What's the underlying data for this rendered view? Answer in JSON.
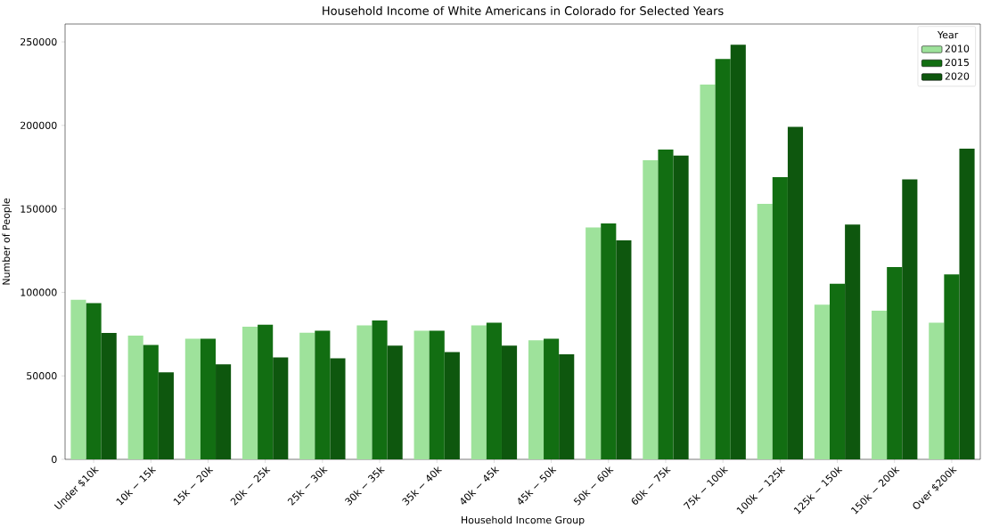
{
  "chart_data": {
    "type": "bar",
    "title": "Household Income of White Americans in Colorado for Selected Years",
    "xlabel": "Household Income Group",
    "ylabel": "Number of People",
    "legend_title": "Year",
    "legend": "top right",
    "categories": [
      "Under $10k",
      "10k − 15k",
      "15k − 20k",
      "20k − 25k",
      "25k − 30k",
      "30k − 35k",
      "35k − 40k",
      "40k − 45k",
      "45k − 50k",
      "50k − 60k",
      "60k − 75k",
      "75k − 100k",
      "100k − 125k",
      "125k − 150k",
      "150k − 200k",
      "Over $200k"
    ],
    "series": [
      {
        "name": "2010",
        "color": "#9ee29b",
        "values": [
          95600,
          74100,
          72200,
          79400,
          75900,
          80200,
          77000,
          80200,
          71300,
          138900,
          179100,
          224500,
          153000,
          92600,
          89000,
          81800
        ]
      },
      {
        "name": "2015",
        "color": "#126e12",
        "values": [
          93500,
          68500,
          72200,
          80700,
          77000,
          83200,
          77000,
          81800,
          72200,
          141300,
          185500,
          239800,
          169000,
          105200,
          115100,
          110800
        ]
      },
      {
        "name": "2020",
        "color": "#0e570e",
        "values": [
          75700,
          52100,
          56900,
          61000,
          60500,
          68100,
          64200,
          68100,
          62900,
          131200,
          181900,
          248300,
          199100,
          140600,
          167700,
          186000
        ]
      }
    ],
    "ylim": [
      0,
      260700
    ],
    "yticks": [
      0,
      50000,
      100000,
      150000,
      200000,
      250000
    ]
  }
}
